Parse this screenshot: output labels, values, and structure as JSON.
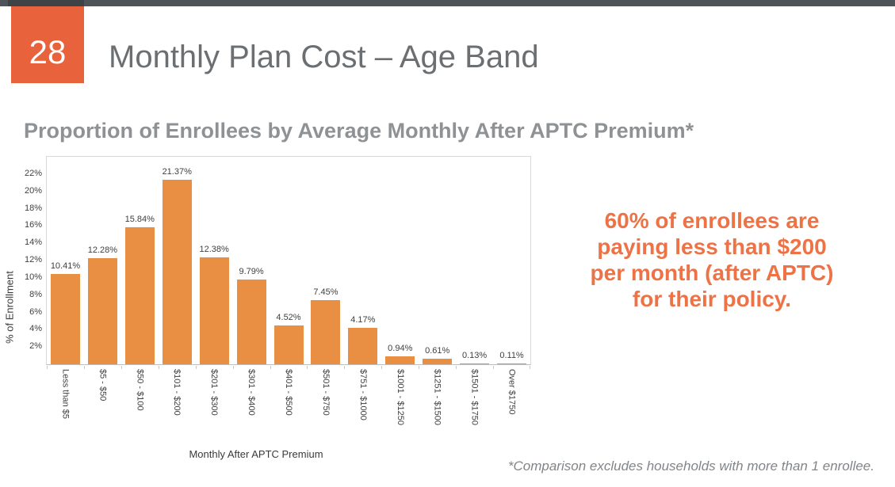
{
  "slide": {
    "number": "28",
    "title": "Monthly Plan Cost – Age Band",
    "callout_text": "60% of enrollees are\npaying less than $200\nper month (after APTC)\nfor their policy.",
    "footnote": "*Comparison excludes households with more than 1 enrollee."
  },
  "chart_data": {
    "type": "bar",
    "title": "Proportion of Enrollees by Average Monthly After APTC Premium*",
    "xlabel": "Monthly After APTC Premium",
    "ylabel": "% of Enrollment",
    "categories": [
      "Less than $5",
      "$5 - $50",
      "$50 - $100",
      "$101 - $200",
      "$201 - $300",
      "$301 - $400",
      "$401 - $500",
      "$501 - $750",
      "$751 - $1000",
      "$1001 - $1250",
      "$1251 - $1500",
      "$1501 - $1750",
      "Over $1750"
    ],
    "values": [
      10.41,
      12.28,
      15.84,
      21.37,
      12.38,
      9.79,
      4.52,
      7.45,
      4.17,
      0.94,
      0.61,
      0.13,
      0.11
    ],
    "value_labels": [
      "10.41%",
      "12.28%",
      "15.84%",
      "21.37%",
      "12.38%",
      "9.79%",
      "4.52%",
      "7.45%",
      "4.17%",
      "0.94%",
      "0.61%",
      "0.13%",
      "0.11%"
    ],
    "ylim": [
      0,
      24
    ],
    "ytick_step": 2,
    "yticks": [
      "2%",
      "4%",
      "6%",
      "8%",
      "10%",
      "12%",
      "14%",
      "16%",
      "18%",
      "20%",
      "22%"
    ],
    "grid": false,
    "legend": false,
    "bar_color": "#e88f43"
  },
  "colors": {
    "accent_box": "#e8633b",
    "bar": "#e88f43",
    "callout": "#ed7347",
    "topbar": "#4f5458",
    "title_gray": "#6b6f72"
  }
}
